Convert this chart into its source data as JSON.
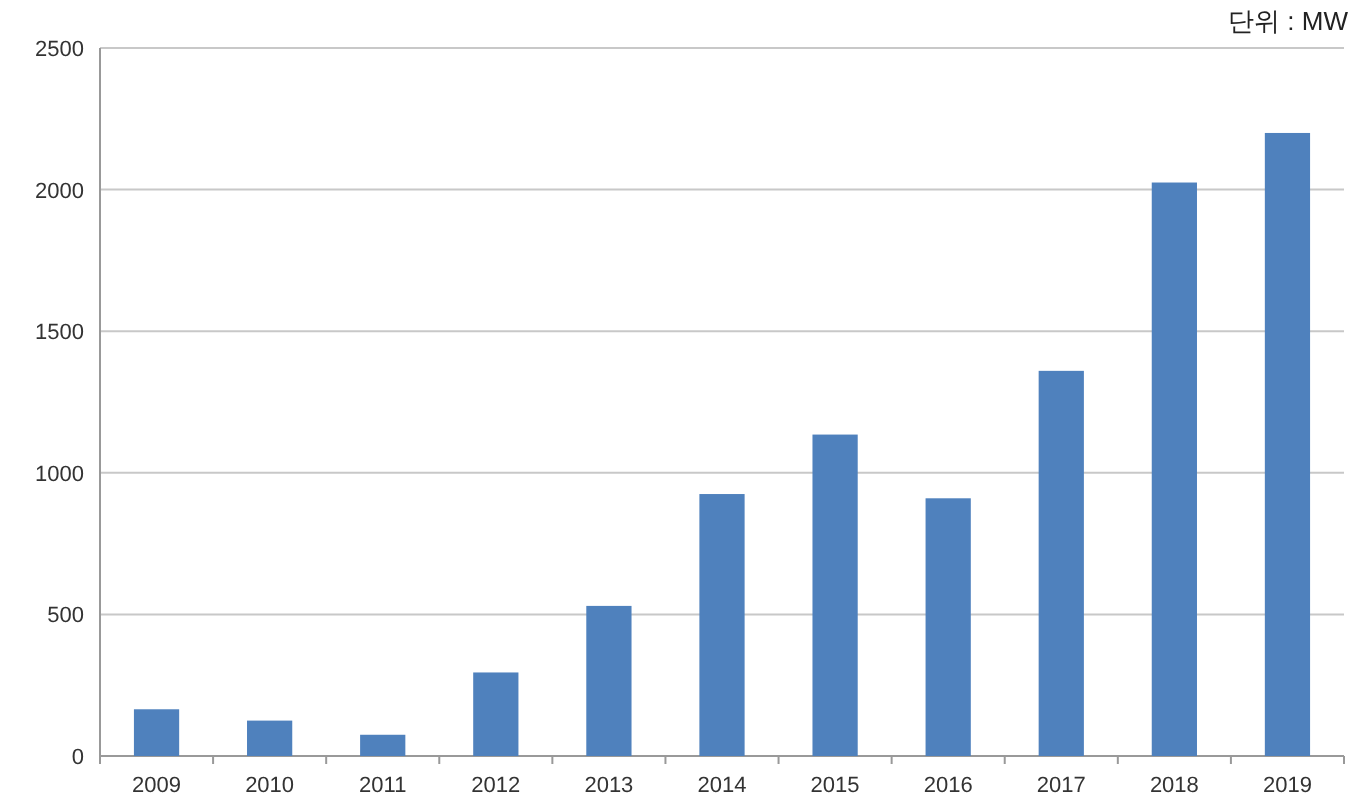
{
  "chart_data": {
    "type": "bar",
    "annotations": [
      "단위 : MW"
    ],
    "categories": [
      "2009",
      "2010",
      "2011",
      "2012",
      "2013",
      "2014",
      "2015",
      "2016",
      "2017",
      "2018",
      "2019"
    ],
    "values": [
      165,
      125,
      75,
      295,
      530,
      925,
      1135,
      910,
      1360,
      2025,
      2200
    ],
    "color": "#4f81bd",
    "ylim": [
      0,
      2500
    ],
    "yticks": [
      0,
      500,
      1000,
      1500,
      2000,
      2500
    ],
    "grid": "y"
  }
}
